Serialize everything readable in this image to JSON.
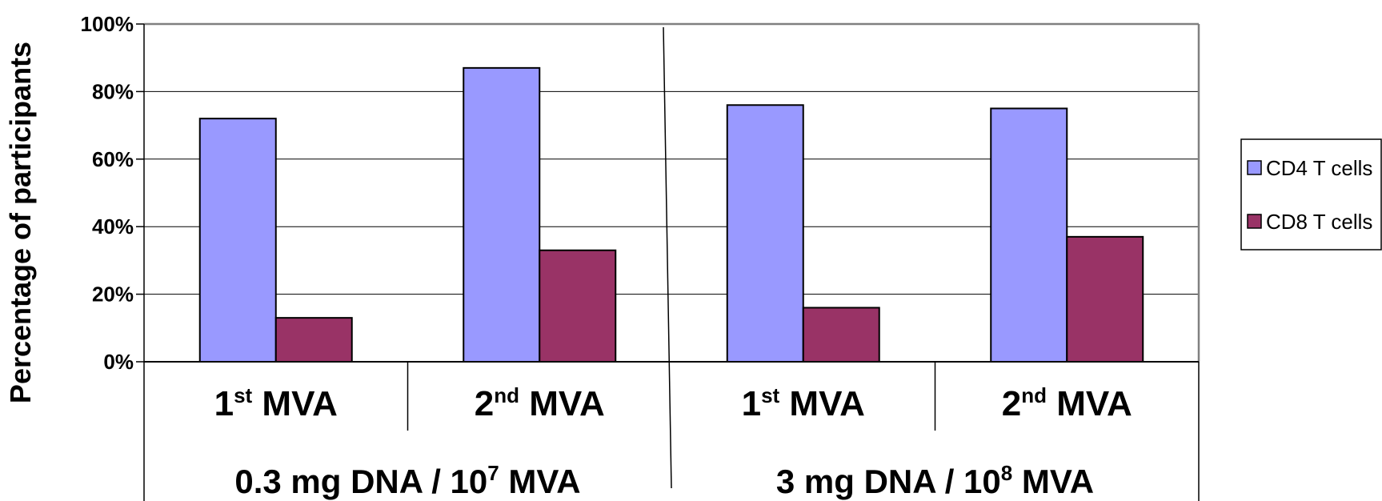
{
  "chart_data": {
    "type": "bar",
    "ylabel": "Percentage of participants",
    "ylim": [
      0,
      100
    ],
    "yticks": [
      "0%",
      "20%",
      "40%",
      "60%",
      "80%",
      "100%"
    ],
    "grid": true,
    "legend_position": "right",
    "categories": [
      {
        "main": "1",
        "sup": "st",
        "rest": " MVA",
        "group": 0
      },
      {
        "main": "2",
        "sup": "nd",
        "rest": " MVA",
        "group": 0
      },
      {
        "main": "1",
        "sup": "st",
        "rest": " MVA",
        "group": 1
      },
      {
        "main": "2",
        "sup": "nd",
        "rest": " MVA",
        "group": 1
      }
    ],
    "groups": [
      {
        "main": "0.3 mg DNA / 10",
        "sup": "7",
        "rest": " MVA"
      },
      {
        "main": "3 mg DNA / 10",
        "sup": "8",
        "rest": " MVA"
      }
    ],
    "series": [
      {
        "name": "CD4 T cells",
        "color": "#9999ff",
        "values": [
          72,
          87,
          76,
          75
        ]
      },
      {
        "name": "CD8 T cells",
        "color": "#993366",
        "values": [
          13,
          33,
          16,
          37
        ]
      }
    ]
  }
}
